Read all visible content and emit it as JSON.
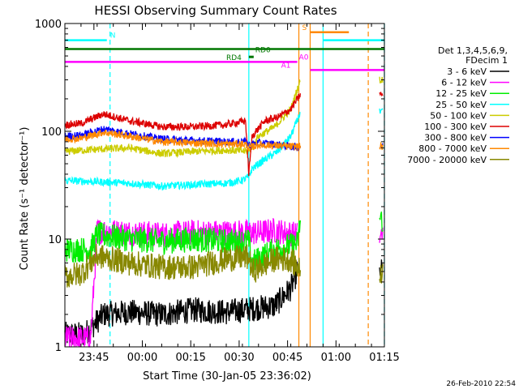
{
  "chart_data": {
    "type": "line",
    "title": "HESSI Observing Summary Count Rates",
    "xlabel": "Start Time (30-Jan-05 23:36:02)",
    "ylabel": "Count Rate (s⁻¹ detector⁻¹)",
    "y_scale": "log",
    "ylim": [
      1,
      1000
    ],
    "xlim_min": [
      0,
      99
    ],
    "x_ticks": [
      {
        "label": "23:45",
        "min": 9
      },
      {
        "label": "00:00",
        "min": 24
      },
      {
        "label": "00:15",
        "min": 39
      },
      {
        "label": "00:30",
        "min": 54
      },
      {
        "label": "00:45",
        "min": 69
      },
      {
        "label": "01:00",
        "min": 84
      },
      {
        "label": "01:15",
        "min": 99
      }
    ],
    "y_ticks": [
      {
        "label": "1",
        "v": 1
      },
      {
        "label": "10",
        "v": 10
      },
      {
        "label": "100",
        "v": 100
      },
      {
        "label": "1000",
        "v": 1000
      }
    ],
    "footer": "26-Feb-2010 22:54",
    "legend": {
      "header": [
        "Det 1,3,4,5,6,9,",
        "FDecim 1"
      ],
      "placement": "right"
    },
    "series": [
      {
        "name": "3 - 6 keV",
        "color": "#000000",
        "x": [
          0,
          6,
          12,
          20,
          30,
          40,
          50,
          60,
          65,
          70,
          72
        ],
        "values": [
          1.3,
          1.3,
          2.0,
          2.1,
          2.0,
          2.2,
          2.1,
          2.3,
          2.4,
          3.5,
          5
        ]
      },
      {
        "name": "6 - 12 keV",
        "color": "#ff00ff",
        "x": [
          0,
          8,
          10,
          20,
          30,
          40,
          50,
          60,
          65,
          72
        ],
        "values": [
          1.2,
          1.2,
          12,
          11.5,
          11,
          11.5,
          11.5,
          11.5,
          12,
          11
        ]
      },
      {
        "name": "12 - 25 keV",
        "color": "#00ee00",
        "x": [
          0,
          8,
          10,
          20,
          30,
          40,
          50,
          57,
          58,
          65,
          72,
          73
        ],
        "values": [
          8,
          8,
          11,
          10,
          9.5,
          10,
          9.5,
          9.5,
          6,
          8,
          9,
          15
        ]
      },
      {
        "name": "25 - 50 keV",
        "color": "#00ffff",
        "x": [
          0,
          10,
          20,
          30,
          40,
          50,
          55,
          57,
          58,
          62,
          66,
          70,
          73
        ],
        "values": [
          35,
          34,
          33,
          31,
          32,
          33,
          35,
          38,
          45,
          55,
          65,
          90,
          150
        ]
      },
      {
        "name": "50 - 100 keV",
        "color": "#cccc00",
        "x": [
          0,
          10,
          20,
          30,
          40,
          50,
          57,
          60,
          65,
          70,
          73
        ],
        "values": [
          65,
          68,
          70,
          62,
          65,
          67,
          65,
          90,
          110,
          160,
          300
        ]
      },
      {
        "name": "100 - 300 keV",
        "color": "#dd0000",
        "x": [
          0,
          5,
          12,
          20,
          30,
          40,
          50,
          56,
          57,
          58,
          62,
          66,
          70,
          73
        ],
        "values": [
          115,
          118,
          145,
          125,
          110,
          110,
          115,
          125,
          40,
          90,
          125,
          135,
          160,
          220
        ]
      },
      {
        "name": "300 - 800 keV",
        "color": "#0000ff",
        "x": [
          0,
          5,
          12,
          20,
          30,
          40,
          50,
          56,
          57,
          60,
          65,
          70,
          73
        ],
        "values": [
          90,
          92,
          105,
          95,
          85,
          82,
          80,
          80,
          75,
          78,
          76,
          72,
          72
        ]
      },
      {
        "name": "800 - 7000 keV",
        "color": "#ff8800",
        "x": [
          0,
          5,
          12,
          20,
          30,
          40,
          50,
          56,
          57,
          60,
          65,
          70,
          73
        ],
        "values": [
          85,
          86,
          98,
          90,
          80,
          78,
          76,
          76,
          70,
          75,
          74,
          72,
          72
        ]
      },
      {
        "name": "7000 - 20000 keV",
        "color": "#888800",
        "x": [
          0,
          5,
          10,
          20,
          30,
          40,
          50,
          57,
          58,
          65,
          70,
          73
        ],
        "values": [
          4.5,
          4.8,
          7,
          6,
          5.5,
          5.5,
          6.5,
          6.8,
          5,
          6.5,
          6.5,
          5
        ]
      }
    ],
    "annotations": [
      {
        "label": "N",
        "color": "#00ffff",
        "x0": 0,
        "x1": 13,
        "y": 700,
        "text_x": 14
      },
      {
        "label": "N",
        "color": "#00ffff",
        "x0": 80,
        "x1": 99,
        "y": 700,
        "text_x": null
      },
      {
        "label": "S",
        "color": "#ff8800",
        "x0": 76,
        "x1": 88,
        "y": 830,
        "text_x": 73.5
      },
      {
        "label": "RD0",
        "color": "#007700",
        "x0": 0,
        "x1": 99,
        "y": 580,
        "text_x": 59
      },
      {
        "label": "RD4",
        "color": "#007700",
        "x0": 57,
        "x1": 58.5,
        "y": 490,
        "text_x": 50
      },
      {
        "label": "A0",
        "color": "#ff00ff",
        "x0": 0,
        "x1": 72,
        "y": 440,
        "text_x": 72.5
      },
      {
        "label": "A1",
        "color": "#ff00ff",
        "x0": 76,
        "x1": 99,
        "y": 370,
        "text_x": 67
      }
    ],
    "vlines": [
      {
        "x": 14,
        "color": "#00ffff",
        "dash": true
      },
      {
        "x": 57,
        "color": "#00ffff",
        "dash": false
      },
      {
        "x": 72.5,
        "color": "#ff8800",
        "dash": false
      },
      {
        "x": 76,
        "color": "#ff8800",
        "dash": false
      },
      {
        "x": 80,
        "color": "#00ffff",
        "dash": false
      },
      {
        "x": 94,
        "color": "#ff8800",
        "dash": true
      },
      {
        "x": 99,
        "color": "#00ffff",
        "dash": true
      }
    ]
  }
}
